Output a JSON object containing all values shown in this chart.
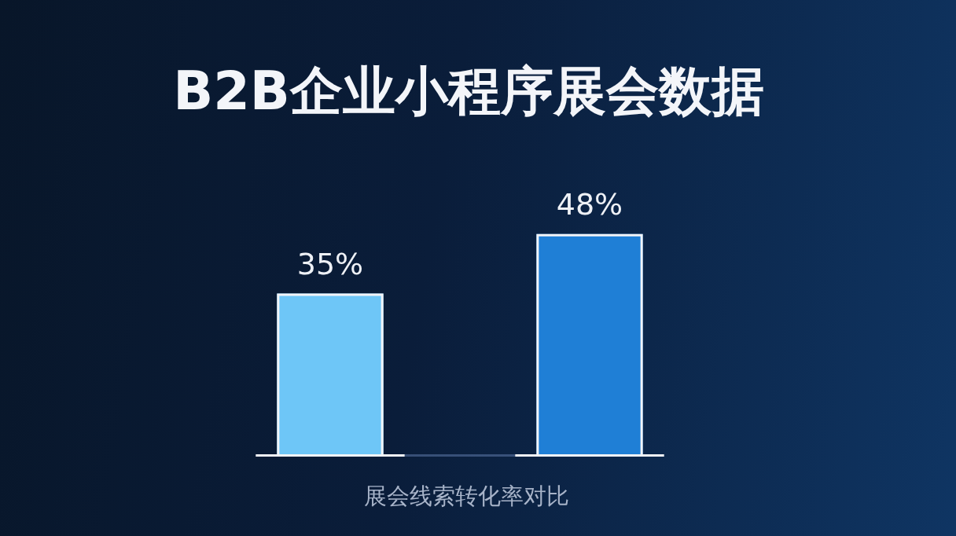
{
  "chart_data": {
    "type": "bar",
    "title": "B2B企业小程序展会数据",
    "xlabel": "展会线索转化率对比",
    "categories": [
      null,
      null
    ],
    "values": [
      35,
      48
    ],
    "colors": [
      "#6ec6f7",
      "#1f7fd6"
    ],
    "value_labels": [
      "35%",
      "48%"
    ],
    "tick_labels": false,
    "grid": false,
    "legend": false
  }
}
